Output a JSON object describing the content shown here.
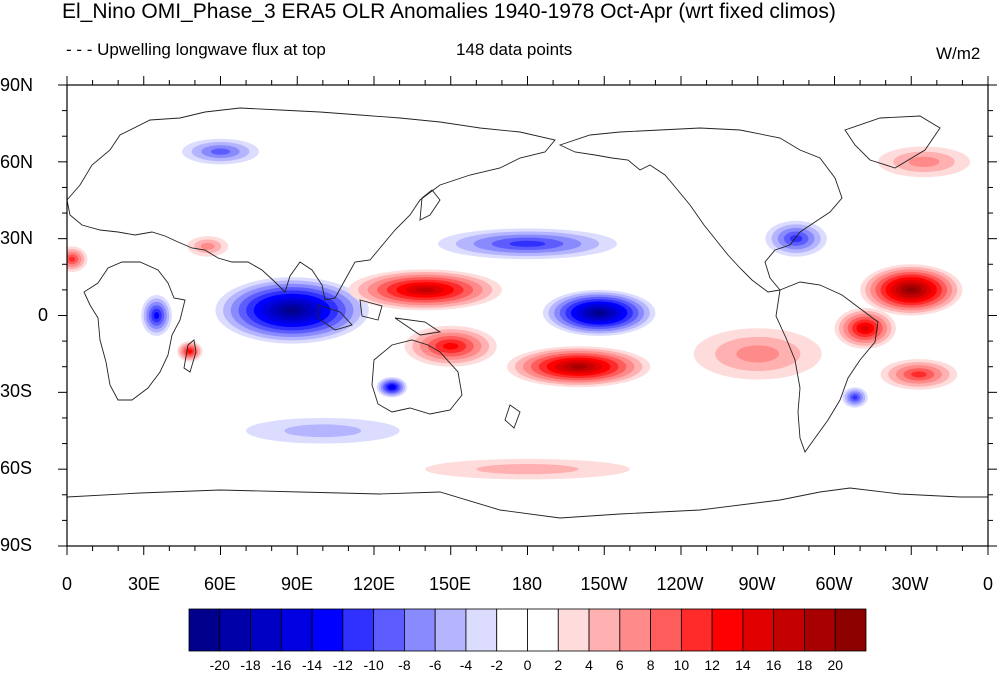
{
  "header": {
    "title": "El_Nino OMI_Phase_3 ERA5 OLR Anomalies 1940-1978 Oct-Apr (wrt fixed climos)",
    "left_note": "- - - Upwelling longwave flux at top",
    "center_note": "148 data points",
    "units": "W/m2"
  },
  "axes": {
    "lat_labels": [
      "90N",
      "60N",
      "30N",
      "0",
      "30S",
      "60S",
      "90S"
    ],
    "lon_labels": [
      "0",
      "30E",
      "60E",
      "90E",
      "120E",
      "150E",
      "180",
      "150W",
      "120W",
      "90W",
      "60W",
      "30W",
      "0"
    ]
  },
  "colorbar": {
    "labels": [
      "-20",
      "-18",
      "-16",
      "-14",
      "-12",
      "-10",
      "-8",
      "-6",
      "-4",
      "-2",
      "0",
      "2",
      "4",
      "6",
      "8",
      "10",
      "12",
      "14",
      "16",
      "18",
      "20"
    ],
    "colors": [
      "#00008c",
      "#0000a8",
      "#0000c4",
      "#0000e0",
      "#0000ff",
      "#3030ff",
      "#5c5cff",
      "#8a8aff",
      "#b4b4ff",
      "#dcdcff",
      "#ffffff",
      "#ffffff",
      "#ffdcdc",
      "#ffb0b0",
      "#ff8a8a",
      "#ff5c5c",
      "#ff2a2a",
      "#ff0000",
      "#e00000",
      "#c40000",
      "#a80000",
      "#8c0000"
    ]
  },
  "map_data": {
    "type": "anomaly-map",
    "projection": "cylindrical-equidistant",
    "lon_range": [
      0,
      360
    ],
    "lat_range": [
      -90,
      90
    ],
    "features": [
      {
        "sign": "neg",
        "lon": 88,
        "lat": 2,
        "rlon": 30,
        "rlat": 13,
        "level": -20
      },
      {
        "sign": "neg",
        "lon": 208,
        "lat": 1,
        "rlon": 22,
        "rlat": 9,
        "level": -20
      },
      {
        "sign": "pos",
        "lon": 140,
        "lat": 10,
        "rlon": 30,
        "rlat": 8,
        "level": 16
      },
      {
        "sign": "pos",
        "lon": 200,
        "lat": -20,
        "rlon": 28,
        "rlat": 8,
        "level": 18
      },
      {
        "sign": "pos",
        "lon": 150,
        "lat": -12,
        "rlon": 18,
        "rlat": 8,
        "level": 12
      },
      {
        "sign": "pos",
        "lon": 330,
        "lat": 10,
        "rlon": 20,
        "rlat": 10,
        "level": 20
      },
      {
        "sign": "pos",
        "lon": 312,
        "lat": -5,
        "rlon": 12,
        "rlat": 8,
        "level": 14
      },
      {
        "sign": "pos",
        "lon": 333,
        "lat": -23,
        "rlon": 15,
        "rlat": 6,
        "level": 10
      },
      {
        "sign": "pos",
        "lon": 270,
        "lat": -15,
        "rlon": 25,
        "rlat": 10,
        "level": 6
      },
      {
        "sign": "neg",
        "lon": 180,
        "lat": 28,
        "rlon": 35,
        "rlat": 6,
        "level": -10
      },
      {
        "sign": "neg",
        "lon": 285,
        "lat": 30,
        "rlon": 12,
        "rlat": 7,
        "level": -10
      },
      {
        "sign": "neg",
        "lon": 35,
        "lat": 0,
        "rlon": 6,
        "rlat": 8,
        "level": -12
      },
      {
        "sign": "neg",
        "lon": 127,
        "lat": -28,
        "rlon": 6,
        "rlat": 4,
        "level": -14
      },
      {
        "sign": "neg",
        "lon": 308,
        "lat": -32,
        "rlon": 5,
        "rlat": 4,
        "level": -10
      },
      {
        "sign": "pos",
        "lon": 48,
        "lat": -14,
        "rlon": 5,
        "rlat": 4,
        "level": 12
      },
      {
        "sign": "pos",
        "lon": 2,
        "lat": 22,
        "rlon": 6,
        "rlat": 5,
        "level": 10
      },
      {
        "sign": "pos",
        "lon": 55,
        "lat": 27,
        "rlon": 8,
        "rlat": 4,
        "level": 6
      },
      {
        "sign": "neg",
        "lon": 60,
        "lat": 64,
        "rlon": 15,
        "rlat": 5,
        "level": -8
      },
      {
        "sign": "pos",
        "lon": 335,
        "lat": 60,
        "rlon": 18,
        "rlat": 6,
        "level": 6
      },
      {
        "sign": "neg",
        "lon": 100,
        "lat": -45,
        "rlon": 30,
        "rlat": 5,
        "level": -4
      },
      {
        "sign": "pos",
        "lon": 180,
        "lat": -60,
        "rlon": 40,
        "rlat": 4,
        "level": 4
      }
    ]
  }
}
